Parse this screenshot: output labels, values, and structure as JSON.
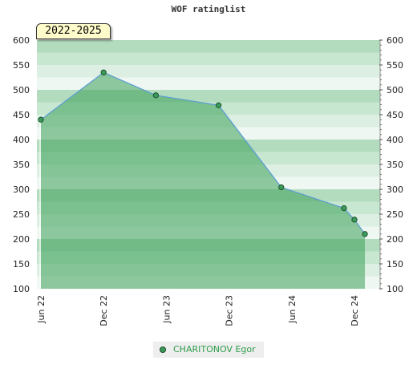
{
  "chart_data": {
    "type": "area",
    "title": "WOF ratinglist",
    "period_label": "2022-2025",
    "y_ticks": [
      100,
      150,
      200,
      250,
      300,
      350,
      400,
      450,
      500,
      550,
      600
    ],
    "ylim": [
      100,
      600
    ],
    "x_ticks": [
      "Jun 22",
      "Dec 22",
      "Jun 23",
      "Dec 23",
      "Jun 24",
      "Dec 24"
    ],
    "series": [
      {
        "name": "CHARITONOV Egor",
        "points": [
          {
            "x": "2022-06",
            "y": 440
          },
          {
            "x": "2022-12",
            "y": 535
          },
          {
            "x": "2023-05",
            "y": 489
          },
          {
            "x": "2023-11",
            "y": 469
          },
          {
            "x": "2024-05",
            "y": 304
          },
          {
            "x": "2024-11",
            "y": 262
          },
          {
            "x": "2024-12",
            "y": 239
          },
          {
            "x": "2025-01",
            "y": 210
          }
        ]
      }
    ],
    "grid": true,
    "legend_position": "bottom",
    "colors": {
      "line": "#5a9bd5",
      "marker": "#3a9a59",
      "legend_text": "#2d9d4a",
      "band_light": "#eef7f1",
      "band_mid": "#c7e6d1",
      "band_dark": "#a9d8b8"
    }
  }
}
